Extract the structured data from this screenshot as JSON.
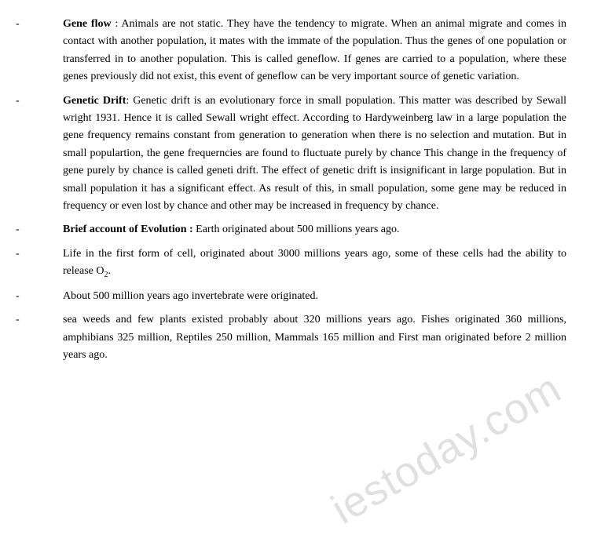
{
  "items": [
    {
      "dash": "-",
      "heading": "Gene flow",
      "sep": " : ",
      "text": "Animals are not static. They have the tendency to migrate. When an animal migrate and comes in contact with another population, it mates with the immate of the population. Thus the genes of one population or transferred in to another population. This is called geneflow. If genes are carried to a population, where these genes previously did not exist, this event of geneflow can be very important source of genetic variation."
    },
    {
      "dash": "-",
      "heading": "Genetic Drift",
      "sep": ": ",
      "text": "Genetic drift is an evolutionary force in small population. This matter was described by Sewall wright 1931. Hence it is called Sewall wright effect. According to Hardyweinberg law in a large population the gene frequency remains constant from generation to generation when there is no selection and mutation. But in small populartion, the gene frequerncies are found to fluctuate purely by chance This change in the frequency of gene purely by chance is called geneti drift. The effect of genetic drift is insignificant in large population. But in small population it has a significant effect. As result of this, in small population, some gene may be reduced in frequency or even lost by chance and other may be increased in frequency by chance."
    },
    {
      "dash": "-",
      "heading": "Brief account of Evolution :",
      "sep": " ",
      "text": "Earth originated about 500 millions years ago."
    },
    {
      "dash": "-",
      "heading": "",
      "sep": "",
      "text_pre": "Life in the first form of cell, originated about 3000 millions years ago, some of these cells had the ability to release O",
      "sub": "2",
      "text_post": "."
    },
    {
      "dash": "-",
      "heading": "",
      "sep": "",
      "text": "About 500 million years ago invertebrate were originated."
    },
    {
      "dash": "-",
      "heading": "",
      "sep": "",
      "text": "sea weeds and few plants existed probably about 320 millions years ago. Fishes originated 360 millions, amphibians 325 million, Reptiles 250 million, Mammals 165 million and First man originated before 2 million years ago."
    }
  ],
  "watermark": "iestoday.com",
  "styles": {
    "font_family": "Times New Roman",
    "font_size_pt": 14,
    "text_color": "#000000",
    "background_color": "#ffffff",
    "watermark_color": "rgba(0,0,0,0.12)",
    "watermark_rotation_deg": -30
  }
}
